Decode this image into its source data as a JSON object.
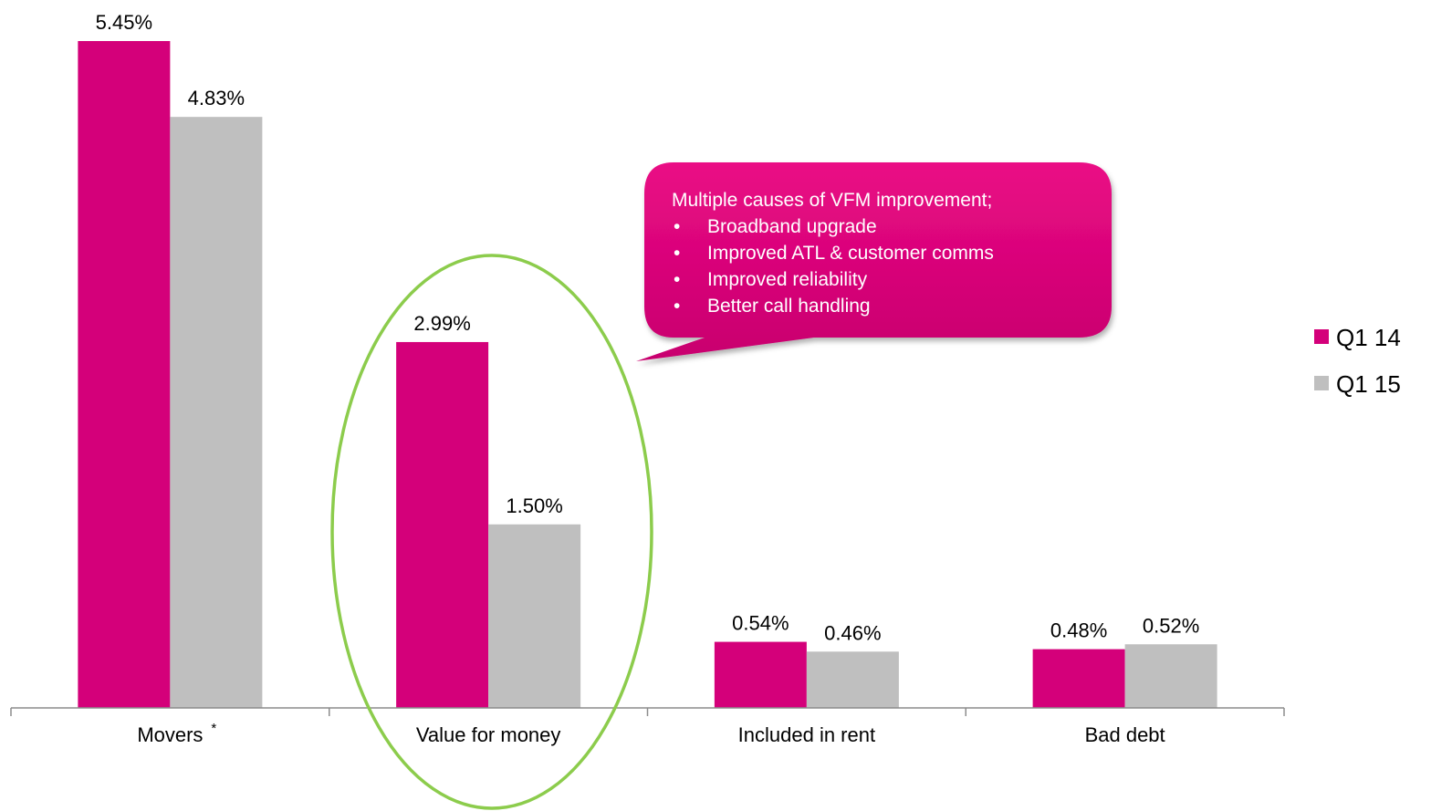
{
  "chart_data": {
    "type": "bar",
    "categories": [
      "Movers",
      "Value for money",
      "Included in rent",
      "Bad debt"
    ],
    "category_footnote": {
      "index": 0,
      "mark": "*"
    },
    "series": [
      {
        "name": "Q1 14",
        "color": "#d4007a",
        "values": [
          5.45,
          2.99,
          0.54,
          0.48
        ]
      },
      {
        "name": "Q1 15",
        "color": "#bfbfbf",
        "values": [
          4.83,
          1.5,
          0.46,
          0.52
        ]
      }
    ],
    "value_labels": [
      [
        "5.45%",
        "2.99%",
        "0.54%",
        "0.48%"
      ],
      [
        "4.83%",
        "1.50%",
        "0.46%",
        "0.52%"
      ]
    ],
    "ylim": [
      0,
      5.45
    ],
    "grid": false,
    "legend_position": "right",
    "highlight": {
      "category_index": 1,
      "shape": "ellipse",
      "color": "#8ccc4c"
    },
    "callout": {
      "color": "#e5007d",
      "text_color": "#ffffff",
      "heading": "Multiple causes of VFM improvement;",
      "bullet": "•",
      "items": [
        "Broadband upgrade",
        "Improved ATL  & customer comms",
        "Improved reliability",
        "Better call handling"
      ]
    }
  }
}
